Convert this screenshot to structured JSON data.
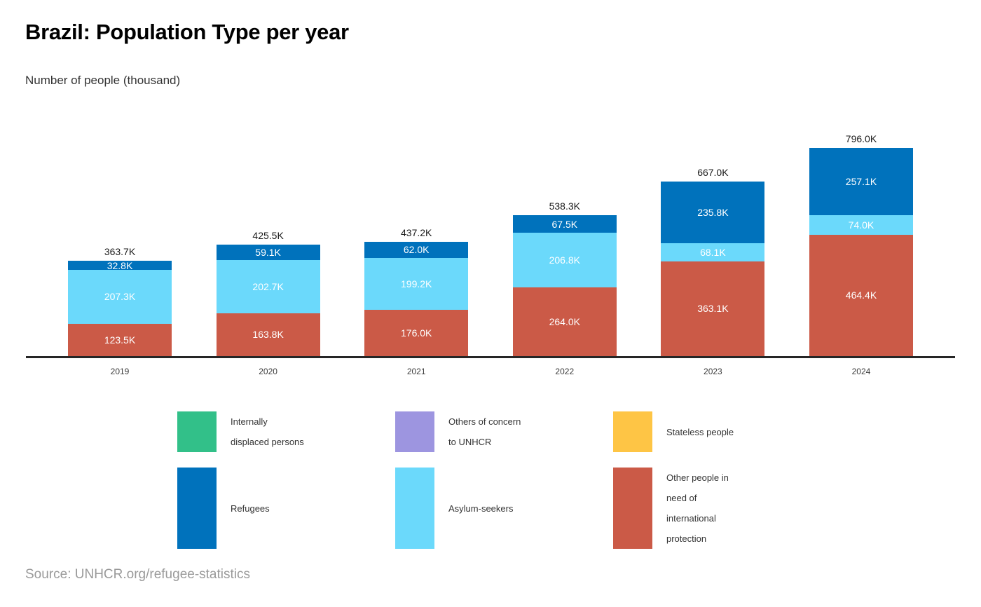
{
  "header": {
    "title": "Brazil: Population Type per year",
    "subtitle": "Number of people (thousand)"
  },
  "chart_data": {
    "type": "bar",
    "stacked": true,
    "title": "Brazil: Population Type per year",
    "ylabel": "Number of people (thousand)",
    "xlabel": "",
    "unit": "thousand",
    "value_suffix": "K",
    "grid": false,
    "legend_position": "bottom",
    "categories": [
      "2019",
      "2020",
      "2021",
      "2022",
      "2023",
      "2024"
    ],
    "totals": [
      363.7,
      425.5,
      437.2,
      538.3,
      667.0,
      796.0
    ],
    "series": [
      {
        "name": "Other people in need of international protection",
        "color": "#CB5A47",
        "values": [
          123.5,
          163.8,
          176.0,
          264.0,
          363.1,
          464.4
        ]
      },
      {
        "name": "Asylum-seekers",
        "color": "#6BD9FB",
        "values": [
          207.3,
          202.7,
          199.2,
          206.8,
          68.1,
          74.0
        ]
      },
      {
        "name": "Refugees",
        "color": "#0072BC",
        "values": [
          32.8,
          59.1,
          62.0,
          67.5,
          235.8,
          257.1
        ]
      }
    ]
  },
  "legend": {
    "items": [
      {
        "label": "Internally displaced persons",
        "lines": [
          "Internally",
          "displaced persons"
        ],
        "color": "#32C089"
      },
      {
        "label": "Others of concern to UNHCR",
        "lines": [
          "Others of concern",
          "to UNHCR"
        ],
        "color": "#9D95E0"
      },
      {
        "label": "Stateless people",
        "lines": [
          "Stateless people"
        ],
        "color": "#FEC545"
      },
      {
        "label": "Refugees",
        "lines": [
          "Refugees"
        ],
        "color": "#0072BC"
      },
      {
        "label": "Asylum-seekers",
        "lines": [
          "Asylum-seekers"
        ],
        "color": "#6BD9FB"
      },
      {
        "label": "Other people in need of international protection",
        "lines": [
          "Other people in",
          "need of",
          "international",
          "protection"
        ],
        "color": "#CB5A47"
      }
    ]
  },
  "footer": {
    "source": "Source: UNHCR.org/refugee-statistics"
  }
}
